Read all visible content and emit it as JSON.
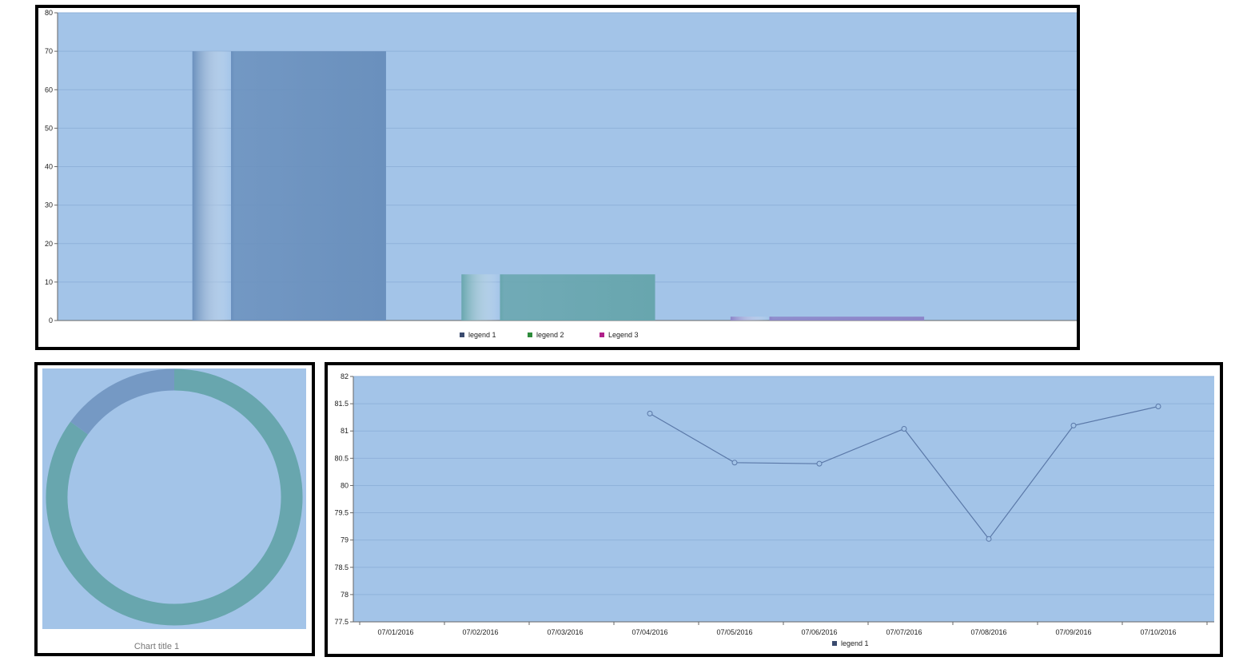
{
  "chart_data": [
    {
      "type": "bar",
      "categories": [
        "legend 1",
        "legend 2",
        "Legend 3"
      ],
      "values": [
        70,
        12,
        1
      ],
      "colors": [
        "#6a90bd",
        "#68a6ae",
        "#8c84c8"
      ],
      "legend": [
        {
          "label": "legend 1",
          "color": "#3a4a6e"
        },
        {
          "label": "legend 2",
          "color": "#2e8c3c"
        },
        {
          "label": "Legend 3",
          "color": "#b0208a"
        }
      ],
      "ylim": [
        0,
        80
      ],
      "yticks": [
        "0",
        "10",
        "20",
        "30",
        "40",
        "50",
        "60",
        "70",
        "80"
      ],
      "grid": true,
      "legend_position": "bottom",
      "plot_background": "#a3c4e8"
    },
    {
      "type": "pie",
      "style": "donut",
      "title": "Chart title 1",
      "slices": [
        {
          "value": 85,
          "color": "#68a6ae"
        },
        {
          "value": 15,
          "color": "#7599c4"
        }
      ],
      "plot_background": "#a3c4e8"
    },
    {
      "type": "line",
      "categories": [
        "07/01/2016",
        "07/02/2016",
        "07/03/2016",
        "07/04/2016",
        "07/05/2016",
        "07/06/2016",
        "07/07/2016",
        "07/08/2016",
        "07/09/2016",
        "07/10/2016"
      ],
      "series": [
        {
          "name": "legend 1",
          "values": [
            null,
            null,
            null,
            81.32,
            80.42,
            80.4,
            81.04,
            79.02,
            81.1,
            81.45
          ],
          "color": "#5a78a8",
          "legend_color": "#3a4a6e"
        }
      ],
      "ylim": [
        77.5,
        82
      ],
      "yticks": [
        "77.5",
        "78",
        "78.5",
        "79",
        "79.5",
        "80",
        "80.5",
        "81",
        "81.5",
        "82"
      ],
      "grid": true,
      "legend_position": "bottom",
      "plot_background": "#a3c4e8"
    }
  ]
}
